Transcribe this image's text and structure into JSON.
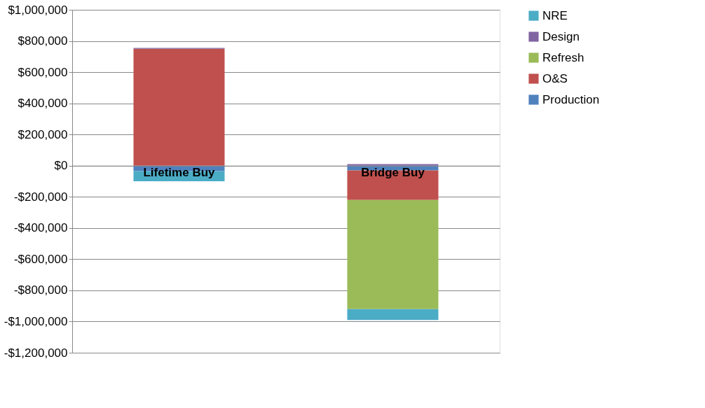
{
  "chart_data": {
    "type": "bar",
    "stacked": true,
    "categories": [
      "Lifetime Buy",
      "Bridge Buy"
    ],
    "series": [
      {
        "name": "Production",
        "color": "#4f81bd",
        "values": [
          -35000,
          -30000
        ]
      },
      {
        "name": "O&S",
        "color": "#c0504d",
        "values": [
          750000,
          -190000
        ]
      },
      {
        "name": "Refresh",
        "color": "#9bbb59",
        "values": [
          0,
          -700000
        ]
      },
      {
        "name": "Design",
        "color": "#8064a2",
        "values": [
          5000,
          10000
        ]
      },
      {
        "name": "NRE",
        "color": "#4bacc6",
        "values": [
          -65000,
          -70000
        ]
      }
    ],
    "ylim": [
      -1200000,
      1000000
    ],
    "yticks": [
      {
        "value": -1200000,
        "label": "-$1,200,000"
      },
      {
        "value": -1000000,
        "label": "-$1,000,000"
      },
      {
        "value": -800000,
        "label": "-$800,000"
      },
      {
        "value": -600000,
        "label": "-$600,000"
      },
      {
        "value": -400000,
        "label": "-$400,000"
      },
      {
        "value": -200000,
        "label": "-$200,000"
      },
      {
        "value": 0,
        "label": "$0"
      },
      {
        "value": 200000,
        "label": "$200,000"
      },
      {
        "value": 400000,
        "label": "$400,000"
      },
      {
        "value": 600000,
        "label": "$600,000"
      },
      {
        "value": 800000,
        "label": "$800,000"
      },
      {
        "value": 1000000,
        "label": "$1,000,000"
      }
    ],
    "grid": "y",
    "legend": "right"
  }
}
